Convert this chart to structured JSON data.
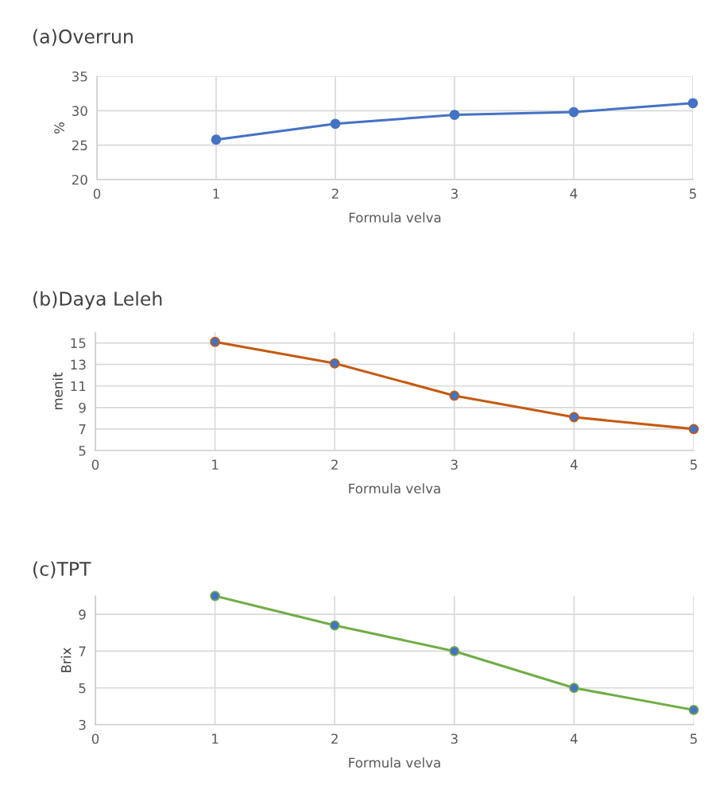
{
  "chart_data": [
    {
      "type": "line",
      "title": "(a)Overrun",
      "xlabel": "Formula velva",
      "ylabel": "%",
      "x": [
        1,
        2,
        3,
        4,
        5
      ],
      "xlim": [
        0,
        5
      ],
      "xticks": [
        0,
        1,
        2,
        3,
        4,
        5
      ],
      "ylim": [
        20,
        35
      ],
      "yticks": [
        20,
        25,
        30,
        35
      ],
      "grid": true,
      "marker": "circle",
      "line_style": "solid",
      "series": [
        {
          "color": "#4472c4",
          "colors": [
            "#4472c4",
            "#4472c4",
            "#4472c4",
            "#4472c4",
            "#4472c4"
          ],
          "values": [
            25.8,
            28.1,
            29.4,
            29.8,
            31.1
          ]
        }
      ]
    },
    {
      "type": "line",
      "title": "(b)Daya Leleh",
      "xlabel": "Formula velva",
      "ylabel": "menit",
      "x": [
        1,
        2,
        3,
        4,
        5
      ],
      "xlim": [
        0,
        5
      ],
      "xticks": [
        0,
        1,
        2,
        3,
        4,
        5
      ],
      "ylim": [
        5,
        16
      ],
      "yticks": [
        5,
        7,
        9,
        11,
        13,
        15
      ],
      "grid": true,
      "marker": "circle",
      "line_style": "solid",
      "series": [
        {
          "color": "#c55a11",
          "colors": [
            "#4472c4",
            "#4472c4",
            "#4472c4",
            "#4472c4",
            "#4472c4"
          ],
          "values": [
            15.1,
            13.1,
            10.1,
            8.1,
            7.0
          ]
        }
      ]
    },
    {
      "type": "line",
      "title": "(c)TPT",
      "xlabel": "Formula velva",
      "ylabel": "Brix",
      "x": [
        1,
        2,
        3,
        4,
        5
      ],
      "xlim": [
        0,
        5
      ],
      "xticks": [
        0,
        1,
        2,
        3,
        4,
        5
      ],
      "ylim": [
        3,
        10
      ],
      "yticks": [
        3,
        5,
        7,
        9
      ],
      "grid": true,
      "marker": "circle",
      "line_style": "solid",
      "series": [
        {
          "color": "#70ad47",
          "colors": [
            "#4472c4",
            "#4472c4",
            "#4472c4",
            "#4472c4",
            "#4472c4"
          ],
          "values": [
            10.0,
            8.4,
            7.0,
            5.0,
            3.8
          ]
        }
      ]
    }
  ]
}
